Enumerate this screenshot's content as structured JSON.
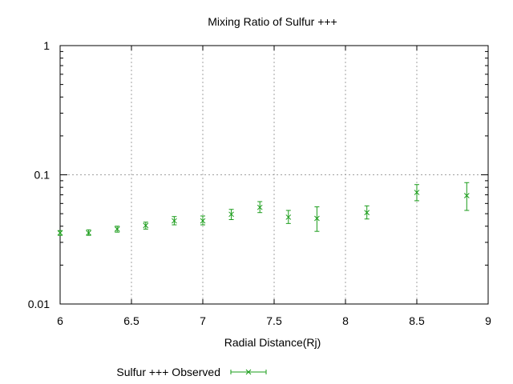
{
  "chart_data": {
    "type": "scatter",
    "title": "Mixing Ratio of Sulfur +++",
    "xlabel": "Radial Distance(Rj)",
    "ylabel": "",
    "xlim": [
      6,
      9
    ],
    "ylim": [
      0.01,
      1
    ],
    "yscale": "log",
    "x_ticks": [
      "6",
      "6.5",
      "7",
      "7.5",
      "8",
      "8.5",
      "9"
    ],
    "y_ticks": [
      "0.01",
      "0.1",
      "1"
    ],
    "x_tick_values": [
      6,
      6.5,
      7,
      7.5,
      8,
      8.5,
      9
    ],
    "y_tick_values": [
      0.01,
      0.1,
      1
    ],
    "grid": true,
    "legend_position": "bottom-left",
    "series": [
      {
        "name": "Sulfur +++ Observed",
        "color": "#1a9c1a",
        "marker": "x",
        "error_bars": true,
        "x": [
          6.0,
          6.2,
          6.4,
          6.6,
          6.8,
          7.0,
          7.2,
          7.4,
          7.6,
          7.8,
          8.15,
          8.5,
          8.85
        ],
        "y": [
          0.0355,
          0.0355,
          0.038,
          0.0405,
          0.044,
          0.044,
          0.0495,
          0.056,
          0.047,
          0.046,
          0.051,
          0.073,
          0.069
        ],
        "y_low": [
          0.034,
          0.034,
          0.036,
          0.038,
          0.041,
          0.041,
          0.045,
          0.051,
          0.042,
          0.0365,
          0.0455,
          0.063,
          0.053
        ],
        "y_high": [
          0.037,
          0.0375,
          0.04,
          0.043,
          0.0475,
          0.048,
          0.054,
          0.062,
          0.053,
          0.0565,
          0.0575,
          0.084,
          0.087
        ]
      }
    ]
  }
}
